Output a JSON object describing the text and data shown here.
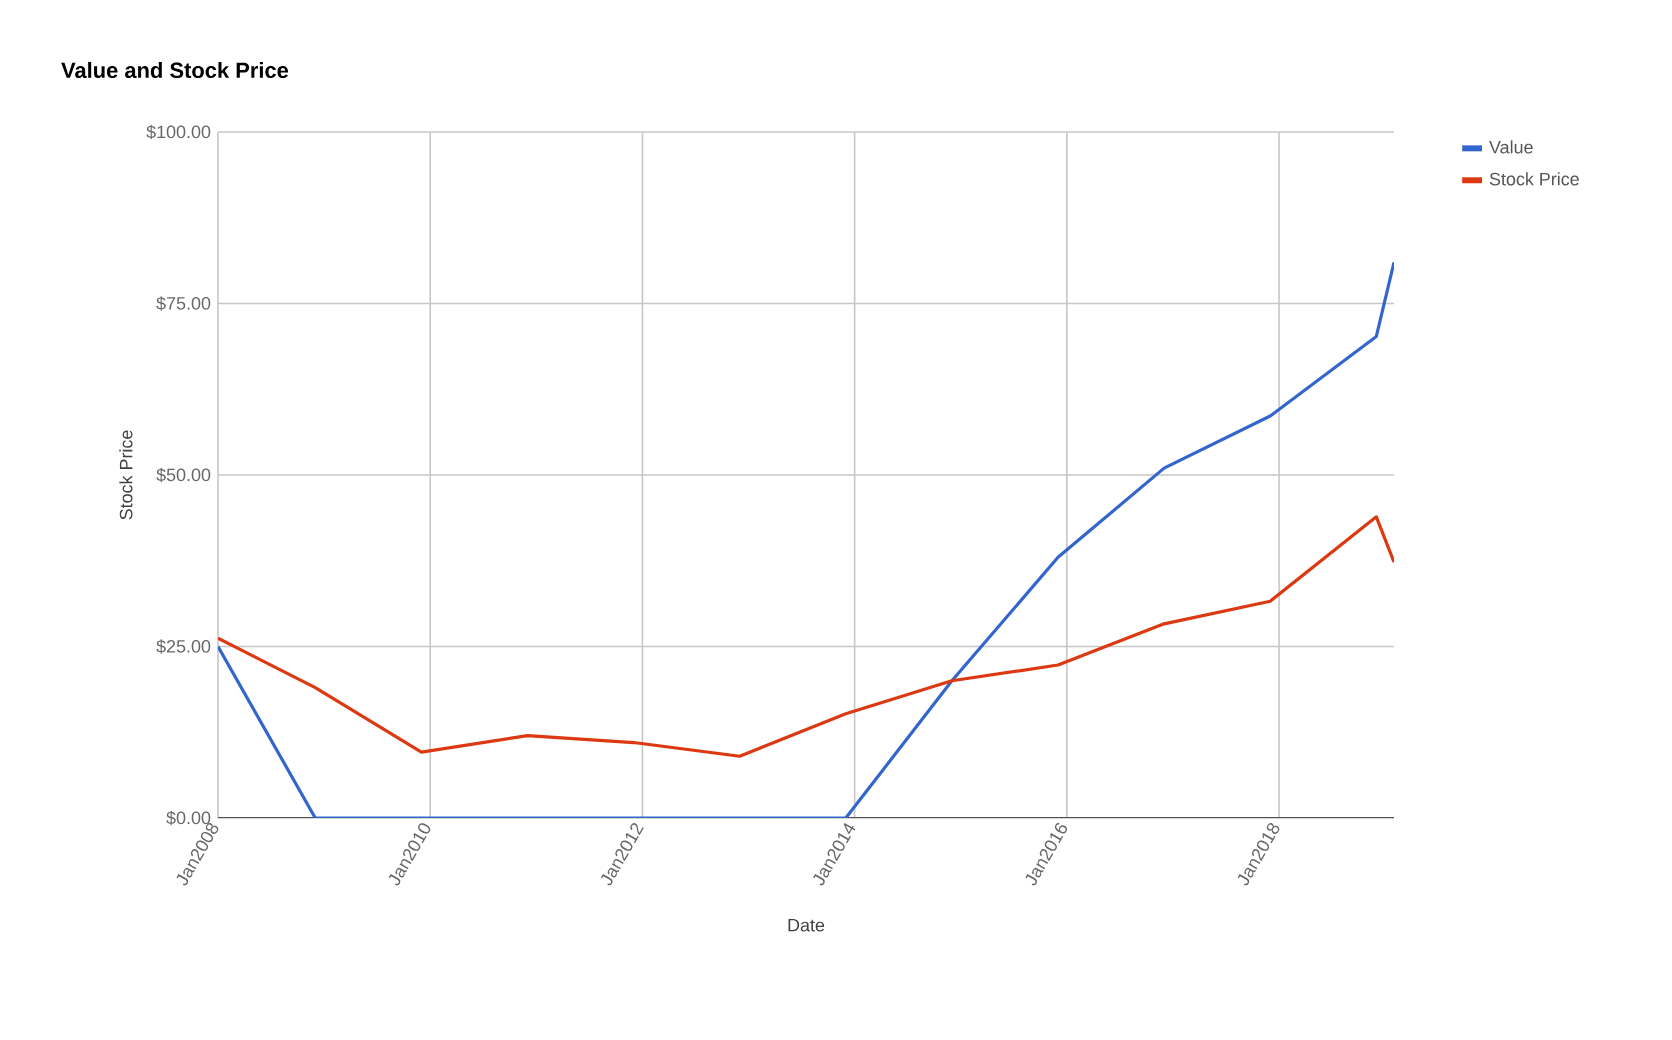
{
  "chart_data": {
    "type": "line",
    "title": "Value and Stock Price",
    "xlabel": "Date",
    "ylabel": "Stock Price",
    "x": [
      "2008-01",
      "2008-12",
      "2009-12",
      "2010-12",
      "2011-12",
      "2012-12",
      "2013-12",
      "2014-12",
      "2015-12",
      "2016-12",
      "2017-12",
      "2018-12",
      "2019-02"
    ],
    "series": [
      {
        "name": "Value",
        "color": "#3366cc",
        "values": [
          25,
          0,
          0,
          0,
          0,
          0,
          0,
          20,
          38,
          51,
          58.6,
          70.2,
          81
        ]
      },
      {
        "name": "Stock Price",
        "color": "#dc3912",
        "values": [
          26.2,
          19,
          9.6,
          12,
          11,
          9,
          15.2,
          20,
          22.3,
          28.3,
          31.6,
          43.9,
          37.3
        ]
      }
    ],
    "xlim": [
      "2008-01",
      "2019-02"
    ],
    "xticks": [
      {
        "value": "2008-01",
        "label": "Jan2008"
      },
      {
        "value": "2010-01",
        "label": "Jan2010"
      },
      {
        "value": "2012-01",
        "label": "Jan2012"
      },
      {
        "value": "2014-01",
        "label": "Jan2014"
      },
      {
        "value": "2016-01",
        "label": "Jan2016"
      },
      {
        "value": "2018-01",
        "label": "Jan2018"
      }
    ],
    "ylim": [
      0,
      100
    ],
    "yticks": [
      {
        "value": 0,
        "label": "$0.00"
      },
      {
        "value": 25,
        "label": "$25.00"
      },
      {
        "value": 50,
        "label": "$50.00"
      },
      {
        "value": 75,
        "label": "$75.00"
      },
      {
        "value": 100,
        "label": "$100.00"
      }
    ],
    "grid": true,
    "legend": "top right",
    "marker": "none",
    "line_style": "solid"
  }
}
